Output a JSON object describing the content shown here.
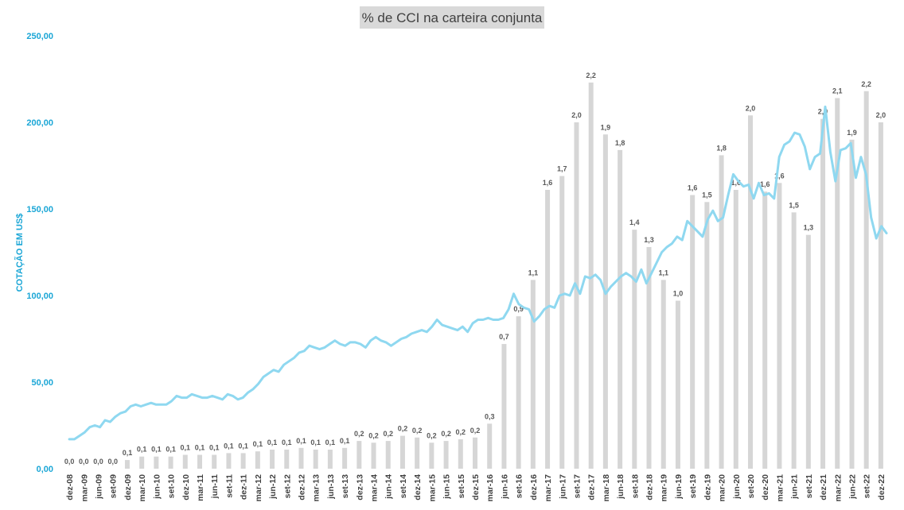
{
  "chart_data": {
    "type": "bar+line",
    "title": "% de CCI na carteira conjunta",
    "ylabel": "COTAÇÃO EM US$",
    "xlabel": "",
    "ylim": [
      0,
      250
    ],
    "yticks": [
      "0,00",
      "50,00",
      "100,00",
      "150,00",
      "200,00",
      "250,00"
    ],
    "yticks_values": [
      0,
      50,
      100,
      150,
      200,
      250
    ],
    "grid": false,
    "legend": "none",
    "colors": {
      "bars": "#d6d6d6",
      "line": "#8fd8f0",
      "axis_text": "#1aa6d6",
      "title_box": "#d9d9d9"
    },
    "categories": [
      "dez-08",
      "mar-09",
      "jun-09",
      "set-09",
      "dez-09",
      "mar-10",
      "jun-10",
      "set-10",
      "dez-10",
      "mar-11",
      "jun-11",
      "set-11",
      "dez-11",
      "mar-12",
      "jun-12",
      "set-12",
      "dez-12",
      "mar-13",
      "jun-13",
      "set-13",
      "dez-13",
      "mar-14",
      "jun-14",
      "set-14",
      "dez-14",
      "mar-15",
      "jun-15",
      "set-15",
      "dez-15",
      "mar-16",
      "jun-16",
      "set-16",
      "dez-16",
      "mar-17",
      "jun-17",
      "set-17",
      "dez-17",
      "mar-18",
      "jun-18",
      "set-18",
      "dez-18",
      "mar-19",
      "jun-19",
      "set-19",
      "dez-19",
      "mar-20",
      "jun-20",
      "set-20",
      "dez-20",
      "mar-21",
      "jun-21",
      "set-21",
      "dez-21",
      "mar-22",
      "jun-22",
      "set-22",
      "dez-22"
    ],
    "bars": {
      "values": [
        0,
        0,
        0,
        0,
        0.05,
        0.07,
        0.07,
        0.07,
        0.08,
        0.08,
        0.08,
        0.09,
        0.09,
        0.1,
        0.11,
        0.11,
        0.12,
        0.11,
        0.11,
        0.12,
        0.16,
        0.15,
        0.16,
        0.19,
        0.18,
        0.15,
        0.16,
        0.17,
        0.18,
        0.26,
        0.72,
        0.88,
        1.09,
        1.61,
        1.69,
        2.0,
        2.23,
        1.93,
        1.84,
        1.38,
        1.28,
        1.09,
        0.97,
        1.58,
        1.54,
        1.81,
        1.61,
        2.04,
        1.6,
        1.65,
        1.48,
        1.35,
        2.02,
        2.14,
        1.9,
        2.18,
        2.0
      ],
      "labels": [
        "0,0",
        "0,0",
        "0,0",
        "0,0",
        "0,1",
        "0,1",
        "0,1",
        "0,1",
        "0,1",
        "0,1",
        "0,1",
        "0,1",
        "0,1",
        "0,1",
        "0,1",
        "0,1",
        "0,1",
        "0,1",
        "0,1",
        "0,1",
        "0,2",
        "0,2",
        "0,2",
        "0,2",
        "0,2",
        "0,2",
        "0,2",
        "0,2",
        "0,2",
        "0,3",
        "0,7",
        "0,9",
        "1,1",
        "1,6",
        "1,7",
        "2,0",
        "2,2",
        "1,9",
        "1,8",
        "1,4",
        "1,3",
        "1,1",
        "1,0",
        "1,6",
        "1,5",
        "1,8",
        "1,6",
        "2,0",
        "1,6",
        "1,6",
        "1,5",
        "1,3",
        "2,0",
        "2,1",
        "1,9",
        "2,2",
        "2,0"
      ],
      "scale_max": 2.5
    },
    "line": {
      "values": [
        17,
        17,
        19,
        21,
        24,
        25,
        24,
        28,
        27,
        30,
        32,
        33,
        36,
        37,
        36,
        37,
        38,
        37,
        37,
        37,
        39,
        42,
        41,
        41,
        43,
        42,
        41,
        41,
        42,
        41,
        40,
        43,
        42,
        40,
        41,
        44,
        46,
        49,
        53,
        55,
        57,
        56,
        60,
        62,
        64,
        67,
        68,
        71,
        70,
        69,
        70,
        72,
        74,
        72,
        71,
        73,
        73,
        72,
        70,
        74,
        76,
        74,
        73,
        71,
        73,
        75,
        76,
        78,
        79,
        80,
        79,
        82,
        86,
        83,
        82,
        81,
        80,
        82,
        79,
        84,
        86,
        86,
        87,
        86,
        86,
        87,
        92,
        101,
        95,
        93,
        92,
        85,
        88,
        92,
        94,
        93,
        100,
        101,
        100,
        107,
        101,
        111,
        110,
        112,
        109,
        101,
        105,
        108,
        111,
        113,
        111,
        108,
        115,
        107,
        113,
        119,
        125,
        128,
        130,
        134,
        132,
        143,
        140,
        137,
        134,
        144,
        149,
        143,
        145,
        158,
        170,
        166,
        163,
        164,
        156,
        165,
        158,
        159,
        156,
        180,
        187,
        189,
        194,
        193,
        186,
        173,
        180,
        182,
        209,
        183,
        166,
        184,
        185,
        188,
        168,
        180,
        170,
        145,
        133,
        140,
        136
      ]
    }
  }
}
